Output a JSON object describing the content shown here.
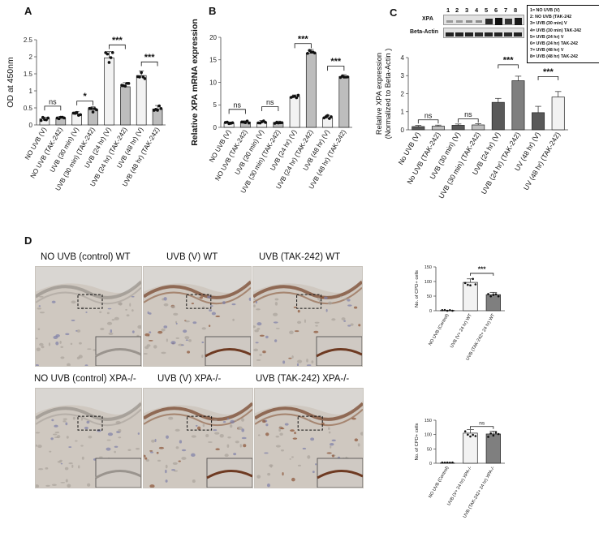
{
  "panels": {
    "A": "A",
    "B": "B",
    "C": "C",
    "D": "D"
  },
  "colors": {
    "bar_light": "#f2f2f2",
    "bar_mid": "#bdbdbd",
    "bar_dark": "#595959",
    "bar_darker": "#7f7f7f",
    "axis": "#444444"
  },
  "chart_data": [
    {
      "id": "A",
      "type": "bar",
      "ylabel": "OD at 450nm",
      "ylim": [
        0,
        2.5
      ],
      "yticks": [
        "0",
        "0.5",
        "1",
        "1.5",
        "2",
        "2.5"
      ],
      "categories": [
        "NO UVB (V)",
        "NO UVB (TAK-242)",
        "UVB (30 min) (V)",
        "UVB (30 min) (TAK-242)",
        "UVB (24 hr) (V)",
        "UVB (24 hr) (TAK-242)",
        "UVB (48 hr) (V)",
        "UVB (48 hr) (TAK-242)"
      ],
      "values": [
        0.18,
        0.2,
        0.32,
        0.45,
        1.97,
        1.12,
        1.45,
        0.47
      ],
      "errors": [
        0.05,
        0.05,
        0.07,
        0.08,
        0.18,
        0.12,
        0.13,
        0.1
      ],
      "annotations": [
        {
          "text": "ns",
          "from": 0,
          "to": 1,
          "level": 0.55
        },
        {
          "text": "*",
          "from": 2,
          "to": 3,
          "level": 0.7
        },
        {
          "text": "***",
          "from": 4,
          "to": 5,
          "level": 2.35
        },
        {
          "text": "***",
          "from": 6,
          "to": 7,
          "level": 1.85
        }
      ]
    },
    {
      "id": "B",
      "type": "bar",
      "ylabel": "Relative XPA mRNA expression",
      "ylim": [
        0,
        20
      ],
      "yticks": [
        "0",
        "5",
        "10",
        "15",
        "20"
      ],
      "categories": [
        "NO UVB (V)",
        "NO UVB (TAK-242)",
        "UVB (30 min) (V)",
        "UVB (30 min) (TAK-242)",
        "UVB (24 hr) (V)",
        "UVB (24 hr) (TAK-242)",
        "UVB (48 hr) (V)",
        "UVB (48 hr) (TAK-242)"
      ],
      "values": [
        1.0,
        1.2,
        1.1,
        1.1,
        6.8,
        16.5,
        2.1,
        11.3
      ],
      "errors": [
        0.2,
        0.25,
        0.4,
        0.3,
        0.4,
        0.8,
        0.6,
        0.4
      ],
      "annotations": [
        {
          "text": "ns",
          "from": 0,
          "to": 1,
          "level": 4.0
        },
        {
          "text": "ns",
          "from": 2,
          "to": 3,
          "level": 4.6
        },
        {
          "text": "***",
          "from": 4,
          "to": 5,
          "level": 18.6
        },
        {
          "text": "***",
          "from": 6,
          "to": 7,
          "level": 13.6
        }
      ]
    },
    {
      "id": "C",
      "type": "bar",
      "ylabel": "Relative XPA expression",
      "ylabel2": "(Normalized to Beta-Actin )",
      "ylim": [
        0,
        4
      ],
      "yticks": [
        "0",
        "1",
        "2",
        "3",
        "4"
      ],
      "categories": [
        "No UVB (V)",
        "No UVB (TAK-242)",
        "UVB (30 min) (V)",
        "UVB (30 min) (TAK-242)",
        "UVB (24 hr) (V)",
        "UVB (24 hr) (TAK-242)",
        "UV (48 hr) (V)",
        "UV (48 hr) (TAK-242)"
      ],
      "values": [
        0.18,
        0.2,
        0.25,
        0.27,
        1.52,
        2.72,
        0.95,
        1.82
      ],
      "errors": [
        0.06,
        0.06,
        0.07,
        0.07,
        0.22,
        0.25,
        0.35,
        0.3
      ],
      "annotations": [
        {
          "text": "ns",
          "from": 0,
          "to": 1,
          "level": 0.55
        },
        {
          "text": "ns",
          "from": 2,
          "to": 3,
          "level": 0.6
        },
        {
          "text": "***",
          "from": 4,
          "to": 5,
          "level": 3.6
        },
        {
          "text": "***",
          "from": 6,
          "to": 7,
          "level": 2.95
        }
      ]
    },
    {
      "id": "D1",
      "type": "bar",
      "ylabel": "No. of CPD+ cells",
      "ylim": [
        0,
        150
      ],
      "yticks": [
        "0",
        "50",
        "100",
        "150"
      ],
      "categories": [
        "NO UVB (Control)",
        "UVB (V+ 24 hr) WT",
        "UVB (TAK-242+ 24 hr) WT"
      ],
      "values": [
        1,
        97,
        55
      ],
      "errors": [
        0,
        12,
        8
      ],
      "annotations": [
        {
          "text": "***",
          "from": 1,
          "to": 2,
          "level": 128
        }
      ]
    },
    {
      "id": "D2",
      "type": "bar",
      "ylabel": "No. of CPD+ cells",
      "ylim": [
        0,
        150
      ],
      "yticks": [
        "0",
        "50",
        "100",
        "150"
      ],
      "categories": [
        "NO UVB (Control)",
        "UVB (V+ 24 hr) XPA-/-",
        "UVB (TAK-242+ 24 hr) XPA-/-"
      ],
      "values": [
        1,
        105,
        102
      ],
      "errors": [
        0,
        12,
        10
      ],
      "annotations": [
        {
          "text": "ns",
          "from": 1,
          "to": 2,
          "level": 128
        }
      ]
    }
  ],
  "blot": {
    "lanes": [
      "1",
      "2",
      "3",
      "4",
      "5",
      "6",
      "7",
      "8"
    ],
    "rows": [
      "XPA",
      "Beta-Actin"
    ],
    "legend": [
      "1= NO UVB (V)",
      "2: NO UVB (TAK-242",
      "3= UVB (30 min) V",
      "4= UVB (30 min) TAK-242",
      "5= UVB (24 hr) V",
      "6= UVB (24 hr) TAK-242",
      "7= UVB (48 hr) V",
      "8= UVB (48 hr) TAK-242"
    ]
  },
  "photos": [
    {
      "title": "NO UVB (control) WT"
    },
    {
      "title": "UVB (V) WT"
    },
    {
      "title": "UVB (TAK-242)  WT"
    },
    {
      "title": "NO UVB (control) XPA-/-"
    },
    {
      "title": "UVB (V) XPA-/-"
    },
    {
      "title": "UVB (TAK-242)  XPA-/-"
    }
  ]
}
